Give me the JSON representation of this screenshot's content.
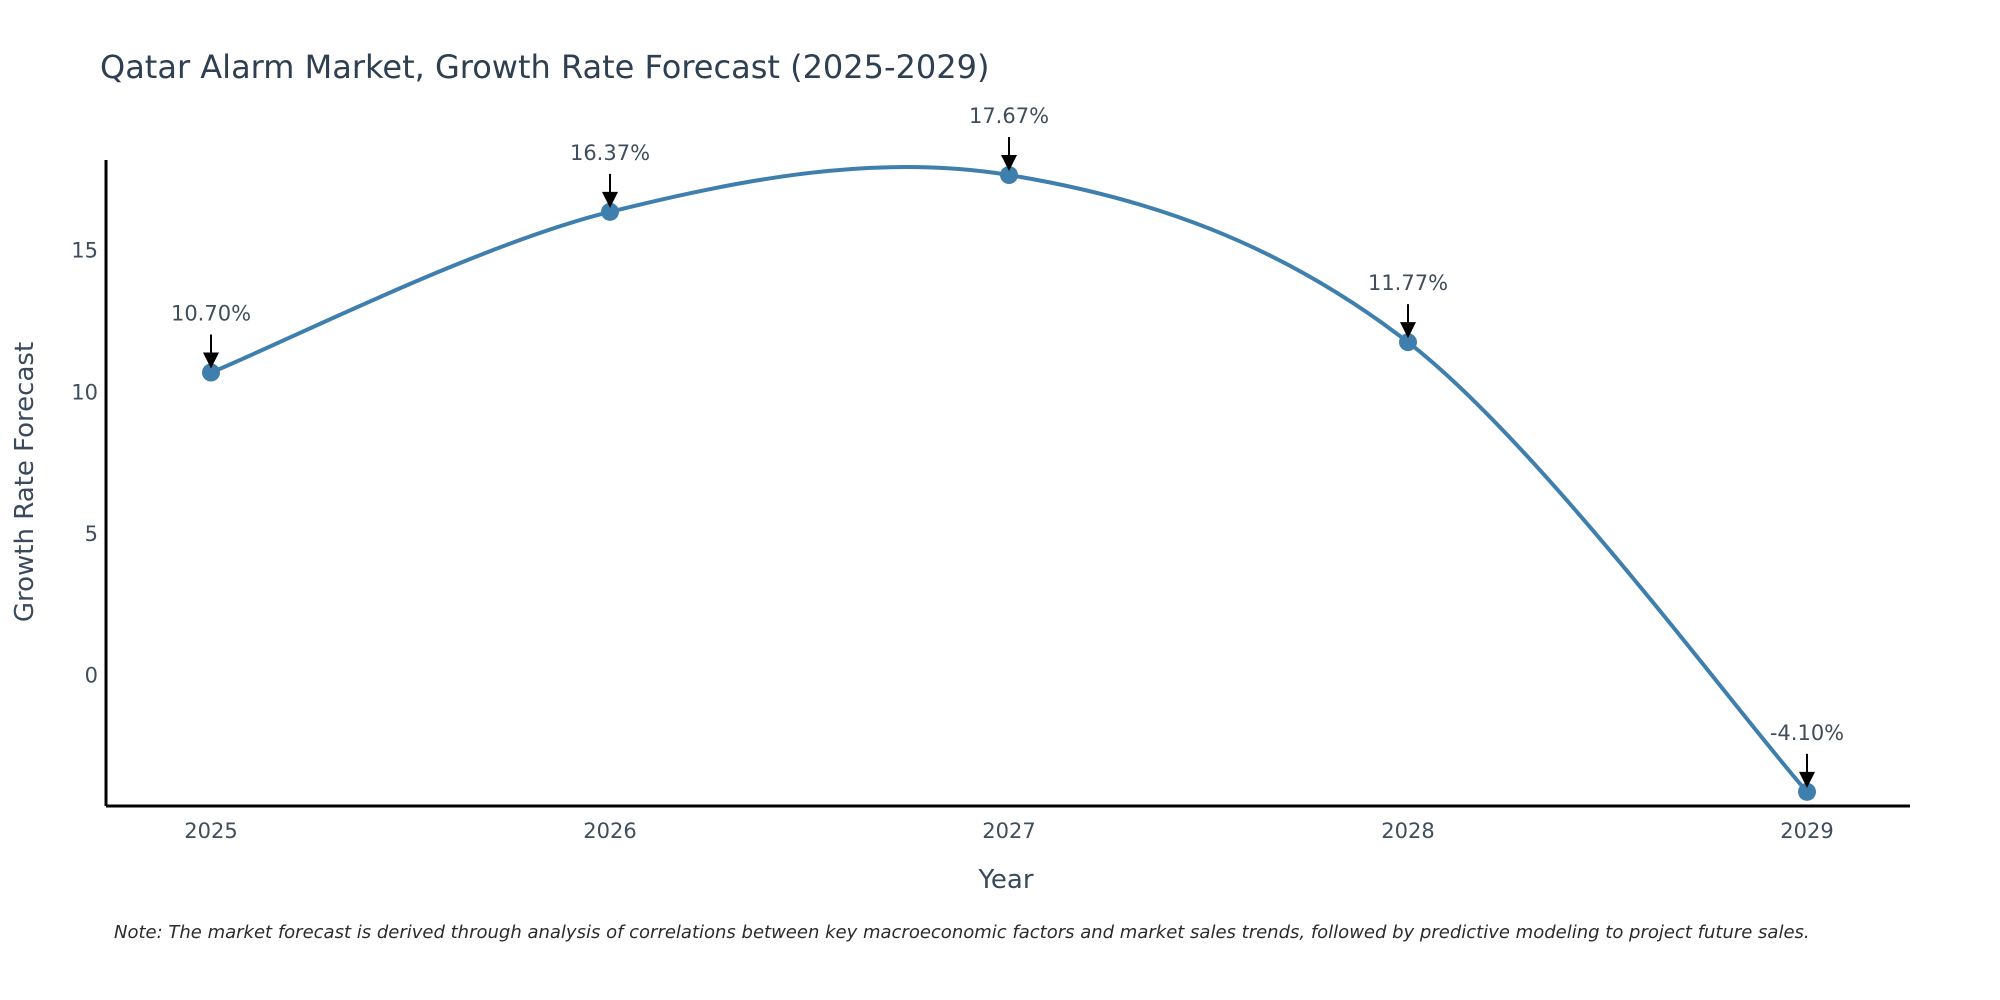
{
  "chart_data": {
    "type": "line",
    "title": "Qatar Alarm Market, Growth Rate Forecast (2025-2029)",
    "xlabel": "Year",
    "ylabel": "Growth Rate Forecast",
    "categories": [
      "2025",
      "2026",
      "2027",
      "2028",
      "2029"
    ],
    "series": [
      {
        "name": "Growth Rate Forecast",
        "values": [
          10.7,
          16.37,
          17.67,
          11.77,
          -4.1
        ],
        "labels": [
          "10.70%",
          "16.37%",
          "17.67%",
          "11.77%",
          "-4.10%"
        ]
      }
    ],
    "y_ticks": [
      0,
      5,
      10,
      15
    ],
    "y_tick_labels": [
      "0",
      "5",
      "10",
      "15"
    ],
    "ylim": [
      -4.6,
      18.2
    ],
    "smooth": true,
    "grid": false,
    "note": "Note: The market forecast is derived through analysis of correlations between key macroeconomic factors and market sales trends, followed by predictive modeling to project future sales.",
    "colors": {
      "line": "#3f7fad",
      "marker": "#3f7fad",
      "arrow": "#000000",
      "axis": "#000000"
    }
  }
}
